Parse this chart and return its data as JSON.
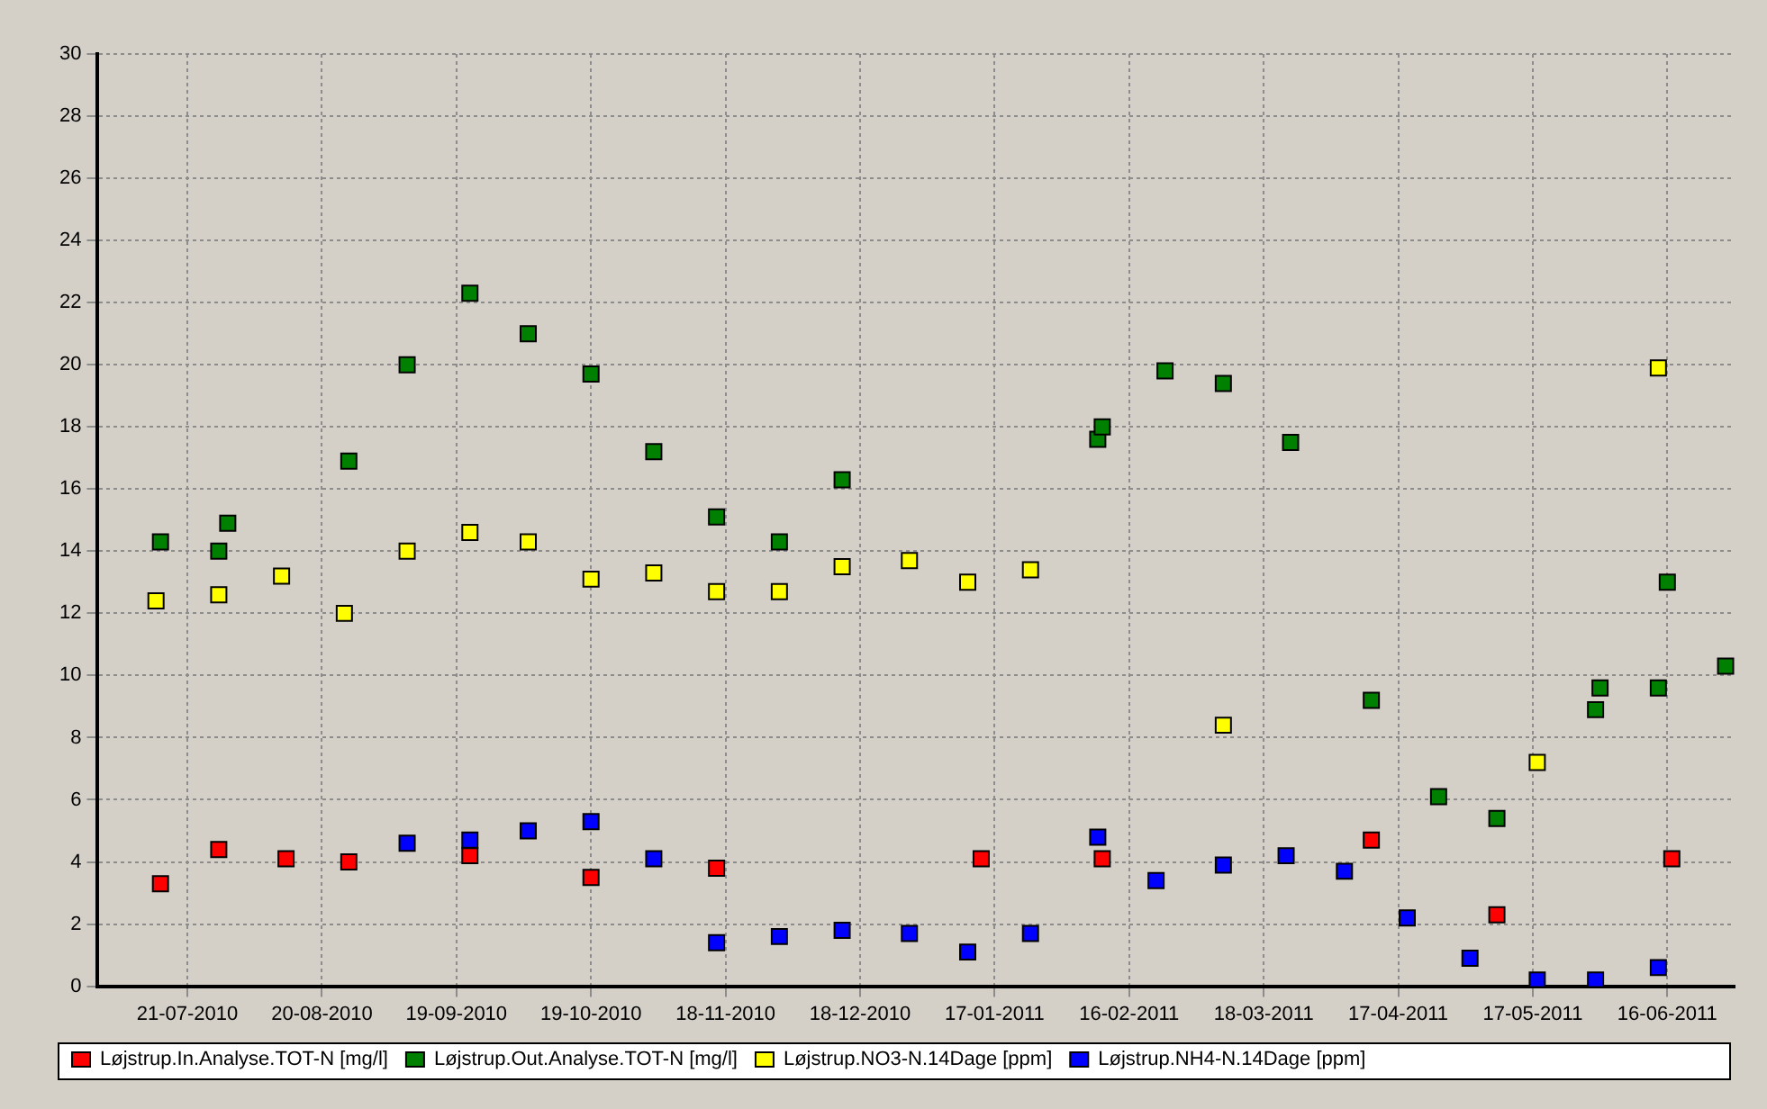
{
  "chart_data": {
    "type": "scatter",
    "marker": "square",
    "grid": true,
    "legend": "bottom",
    "xlim": [
      "2010-07-01",
      "2011-07-01"
    ],
    "xticks": [
      {
        "value": "2010-07-21",
        "label": "21-07-2010"
      },
      {
        "value": "2010-08-20",
        "label": "20-08-2010"
      },
      {
        "value": "2010-09-19",
        "label": "19-09-2010"
      },
      {
        "value": "2010-10-19",
        "label": "19-10-2010"
      },
      {
        "value": "2010-11-18",
        "label": "18-11-2010"
      },
      {
        "value": "2010-12-18",
        "label": "18-12-2010"
      },
      {
        "value": "2011-01-17",
        "label": "17-01-2011"
      },
      {
        "value": "2011-02-16",
        "label": "16-02-2011"
      },
      {
        "value": "2011-03-18",
        "label": "18-03-2011"
      },
      {
        "value": "2011-04-17",
        "label": "17-04-2011"
      },
      {
        "value": "2011-05-17",
        "label": "17-05-2011"
      },
      {
        "value": "2011-06-16",
        "label": "16-06-2011"
      }
    ],
    "ylim": [
      0,
      30
    ],
    "yticks": [
      0,
      2,
      4,
      6,
      8,
      10,
      12,
      14,
      16,
      18,
      20,
      22,
      24,
      26,
      28,
      30
    ],
    "series": [
      {
        "name": "Løjstrup.In.Analyse.TOT-N [mg/l]",
        "color": "#ff0000",
        "x": [
          "2010-07-15",
          "2010-07-28",
          "2010-08-12",
          "2010-08-26",
          "2010-09-22",
          "2010-10-19",
          "2010-11-16",
          "2011-01-14",
          "2011-02-10",
          "2011-04-11",
          "2011-05-09",
          "2011-06-17"
        ],
        "values": [
          3.3,
          4.4,
          4.1,
          4.0,
          4.2,
          3.5,
          3.8,
          4.1,
          4.1,
          4.7,
          2.3,
          4.1
        ]
      },
      {
        "name": "Løjstrup.Out.Analyse.TOT-N [mg/l]",
        "color": "#008000",
        "x": [
          "2010-07-15",
          "2010-07-28",
          "2010-07-30",
          "2010-08-26",
          "2010-09-08",
          "2010-09-22",
          "2010-10-05",
          "2010-10-19",
          "2010-11-02",
          "2010-11-16",
          "2010-11-30",
          "2010-12-14",
          "2011-02-09",
          "2011-02-10",
          "2011-02-24",
          "2011-03-09",
          "2011-03-24",
          "2011-04-11",
          "2011-04-26",
          "2011-05-09",
          "2011-05-31",
          "2011-06-01",
          "2011-06-14",
          "2011-06-16",
          "2011-06-29"
        ],
        "values": [
          14.3,
          14.0,
          14.9,
          16.9,
          20.0,
          22.3,
          21.0,
          19.7,
          17.2,
          15.1,
          14.3,
          16.3,
          17.6,
          18.0,
          19.8,
          19.4,
          17.5,
          9.2,
          6.1,
          5.4,
          8.9,
          9.6,
          9.6,
          13.0,
          10.3
        ]
      },
      {
        "name": "Løjstrup.NO3-N.14Dage [ppm]",
        "color": "#ffff00",
        "x": [
          "2010-07-14",
          "2010-07-28",
          "2010-08-11",
          "2010-08-25",
          "2010-09-08",
          "2010-09-22",
          "2010-10-05",
          "2010-10-19",
          "2010-11-02",
          "2010-11-16",
          "2010-11-30",
          "2010-12-14",
          "2010-12-29",
          "2011-01-11",
          "2011-01-25",
          "2011-03-09",
          "2011-05-18",
          "2011-06-14"
        ],
        "values": [
          12.4,
          12.6,
          13.2,
          12.0,
          14.0,
          14.6,
          14.3,
          13.1,
          13.3,
          12.7,
          12.7,
          13.5,
          13.7,
          13.0,
          13.4,
          8.4,
          7.2,
          19.9
        ]
      },
      {
        "name": "Løjstrup.NH4-N.14Dage [ppm]",
        "color": "#0000ff",
        "x": [
          "2010-09-08",
          "2010-09-22",
          "2010-10-05",
          "2010-10-19",
          "2010-11-02",
          "2010-11-16",
          "2010-11-30",
          "2010-12-14",
          "2010-12-29",
          "2011-01-11",
          "2011-01-25",
          "2011-02-09",
          "2011-02-22",
          "2011-03-09",
          "2011-03-23",
          "2011-04-05",
          "2011-04-19",
          "2011-05-03",
          "2011-05-18",
          "2011-05-31",
          "2011-06-14"
        ],
        "values": [
          4.6,
          4.7,
          5.0,
          5.3,
          4.1,
          1.4,
          1.6,
          1.8,
          1.7,
          1.1,
          1.7,
          4.8,
          3.4,
          3.9,
          4.2,
          3.7,
          2.2,
          0.9,
          0.2,
          0.2,
          0.6
        ]
      }
    ]
  }
}
